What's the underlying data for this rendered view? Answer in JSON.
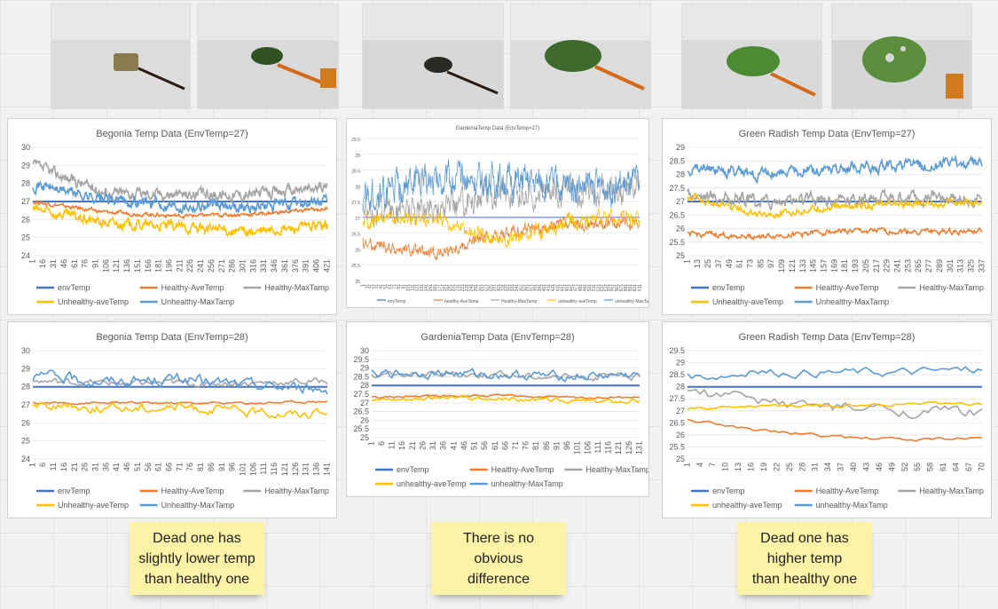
{
  "photos": [
    {
      "name": "photo-begonia-sensor"
    },
    {
      "name": "photo-begonia-leaf"
    },
    {
      "name": "photo-gardenia-sensor"
    },
    {
      "name": "photo-gardenia-leaf"
    },
    {
      "name": "photo-radish-leaf"
    },
    {
      "name": "photo-radish-leaf-damaged"
    }
  ],
  "notes": [
    "Dead one has\nslightly lower temp\nthan healthy one",
    "There is no\nobvious\ndifference",
    "Dead one has\nhigher temp\nthan healthy one"
  ],
  "colors": {
    "envTemp": "#4472c4",
    "healthyAve": "#ed7d31",
    "healthyMax": "#a5a5a5",
    "unhealthyAve": "#ffc000",
    "unhealthyMax": "#5b9bd5"
  },
  "chart_data": [
    {
      "id": "begonia27",
      "type": "line",
      "title": "Begonia Temp Data (EnvTemp=27)",
      "ylim": [
        24,
        30
      ],
      "yticks": [
        24,
        25,
        26,
        27,
        28,
        29,
        30
      ],
      "xticks": [
        "1",
        "16",
        "31",
        "46",
        "61",
        "76",
        "91",
        "106",
        "121",
        "136",
        "151",
        "166",
        "181",
        "196",
        "211",
        "226",
        "241",
        "256",
        "271",
        "286",
        "301",
        "316",
        "331",
        "346",
        "361",
        "376",
        "391",
        "406",
        "421"
      ],
      "n": 432,
      "series": [
        {
          "name": "envTemp",
          "level": [
            27.0,
            27.0,
            27.0,
            27.0,
            27.0
          ],
          "noise": 0
        },
        {
          "name": "Healthy-AveTemp",
          "level": [
            27.0,
            26.4,
            26.2,
            26.3,
            26.6
          ],
          "noise": 0.08
        },
        {
          "name": "Healthy-MaxTamp",
          "level": [
            29.0,
            27.5,
            27.4,
            27.4,
            27.8
          ],
          "noise": 0.25
        },
        {
          "name": "Unhealthy-aveTemp",
          "level": [
            26.6,
            25.8,
            25.6,
            25.3,
            25.7
          ],
          "noise": 0.22
        },
        {
          "name": "Unhealthy-MaxTamp",
          "level": [
            28.0,
            27.1,
            26.8,
            26.7,
            27.0
          ],
          "noise": 0.25
        }
      ],
      "legend_rows": [
        [
          "envTemp",
          "Healthy-AveTemp",
          "Healthy-MaxTamp"
        ],
        [
          "Unhealthy-aveTemp",
          "Unhealthy-MaxTamp"
        ]
      ]
    },
    {
      "id": "gardenia27",
      "type": "line",
      "title": "GardeniaTemp Data (EnvTemp=27)",
      "ylim": [
        25,
        29.5
      ],
      "yticks": [
        25,
        25.5,
        26,
        26.5,
        27,
        27.5,
        28,
        28.5,
        29,
        29.5
      ],
      "xticks": [
        "1",
        "11",
        "21",
        "31",
        "41",
        "51",
        "61",
        "71",
        "81",
        "91",
        "101",
        "111",
        "121",
        "131",
        "141",
        "151",
        "161",
        "171",
        "181",
        "191",
        "201",
        "211",
        "221",
        "231",
        "241",
        "251",
        "261",
        "271",
        "281",
        "291",
        "301",
        "311",
        "321",
        "331",
        "341",
        "351",
        "361",
        "371",
        "381",
        "391",
        "401",
        "411",
        "421",
        "431",
        "441",
        "451",
        "461",
        "471",
        "481",
        "491",
        "501",
        "511",
        "521",
        "531",
        "541",
        "551",
        "561",
        "571",
        "581",
        "591",
        "601",
        "611"
      ],
      "n": 615,
      "series": [
        {
          "name": "envTemp",
          "level": [
            27.0,
            27.0,
            27.0,
            27.0,
            27.0
          ],
          "noise": 0
        },
        {
          "name": "healthy-AveTemp",
          "level": [
            26.2,
            25.8,
            26.5,
            26.8,
            26.8
          ],
          "noise": 0.15
        },
        {
          "name": "Healthy-MaxTamp",
          "level": [
            27.3,
            27.3,
            27.8,
            27.8,
            27.9
          ],
          "noise": 0.35
        },
        {
          "name": "unhealthy-aveTemp",
          "level": [
            26.9,
            27.0,
            26.2,
            26.9,
            27.0
          ],
          "noise": 0.18
        },
        {
          "name": "unhealthy-MaxTamp",
          "level": [
            27.6,
            28.2,
            28.2,
            28.0,
            28.0
          ],
          "noise": 0.4
        }
      ],
      "legend_rows": [
        [
          "envTemp",
          "healthy-AveTemp",
          "Healthy-MaxTamp",
          "unhealthy-aveTemp",
          "unhealthy-MaxTamp"
        ]
      ]
    },
    {
      "id": "radish27",
      "type": "line",
      "title": "Green Radish Temp Data (EnvTemp=27)",
      "ylim": [
        25,
        29
      ],
      "yticks": [
        25,
        25.5,
        26,
        26.5,
        27,
        27.5,
        28,
        28.5,
        29
      ],
      "xticks": [
        "1",
        "13",
        "25",
        "37",
        "49",
        "61",
        "73",
        "85",
        "97",
        "109",
        "121",
        "133",
        "145",
        "157",
        "169",
        "181",
        "193",
        "205",
        "217",
        "229",
        "241",
        "253",
        "265",
        "277",
        "289",
        "301",
        "313",
        "325",
        "337"
      ],
      "n": 345,
      "series": [
        {
          "name": "envTemp",
          "level": [
            27.0,
            27.0,
            27.0,
            27.0,
            27.0
          ],
          "noise": 0
        },
        {
          "name": "Healthy-AveTemp",
          "level": [
            25.8,
            25.7,
            25.9,
            25.9,
            25.9
          ],
          "noise": 0.08
        },
        {
          "name": "Healthy-MaxTamp",
          "level": [
            27.3,
            27.0,
            27.1,
            27.1,
            27.1
          ],
          "noise": 0.2
        },
        {
          "name": "Unhealthy-aveTemp",
          "level": [
            27.2,
            26.5,
            26.8,
            26.9,
            27.0
          ],
          "noise": 0.1
        },
        {
          "name": "Unhealthy-MaxTamp",
          "level": [
            28.3,
            28.0,
            28.2,
            28.3,
            28.4
          ],
          "noise": 0.18
        }
      ],
      "legend_rows": [
        [
          "envTemp",
          "Healthy-AveTemp",
          "Healthy-MaxTamp"
        ],
        [
          "Unhealthy-aveTemp",
          "Unhealthy-MaxTamp"
        ]
      ]
    },
    {
      "id": "begonia28",
      "type": "line",
      "title": "Begonia Temp Data (EnvTemp=28)",
      "ylim": [
        24,
        30
      ],
      "yticks": [
        24,
        25,
        26,
        27,
        28,
        29,
        30
      ],
      "xticks": [
        "1",
        "6",
        "11",
        "16",
        "21",
        "26",
        "31",
        "36",
        "41",
        "46",
        "51",
        "56",
        "61",
        "66",
        "71",
        "76",
        "81",
        "86",
        "91",
        "96",
        "101",
        "106",
        "111",
        "116",
        "121",
        "126",
        "131",
        "136",
        "141"
      ],
      "n": 144,
      "series": [
        {
          "name": "envTemp",
          "level": [
            28.0,
            28.0,
            28.0,
            28.0,
            28.0
          ],
          "noise": 0
        },
        {
          "name": "Healthy-AveTemp",
          "level": [
            27.1,
            27.1,
            27.1,
            27.1,
            27.2
          ],
          "noise": 0.05
        },
        {
          "name": "Healthy-MaxTamp",
          "level": [
            28.3,
            28.2,
            28.2,
            28.2,
            28.3
          ],
          "noise": 0.15
        },
        {
          "name": "Unhealthy-aveTemp",
          "level": [
            27.0,
            26.8,
            26.9,
            26.6,
            26.5
          ],
          "noise": 0.2
        },
        {
          "name": "Unhealthy-MaxTamp",
          "level": [
            28.6,
            28.3,
            28.4,
            28.1,
            27.9
          ],
          "noise": 0.25
        }
      ],
      "legend_rows": [
        [
          "envTemp",
          "Healthy-AveTemp",
          "Healthy-MaxTamp"
        ],
        [
          "Unhealthy-aveTemp",
          "Unhealthy-MaxTamp"
        ]
      ]
    },
    {
      "id": "gardenia28",
      "type": "line",
      "title": "GardeniaTemp Data (EnvTemp=28)",
      "ylim": [
        25,
        30
      ],
      "yticks": [
        25,
        25.5,
        26,
        26.5,
        27,
        27.5,
        28,
        28.5,
        29,
        29.5,
        30
      ],
      "xticks": [
        "1",
        "6",
        "11",
        "16",
        "21",
        "26",
        "31",
        "36",
        "41",
        "46",
        "51",
        "56",
        "61",
        "66",
        "71",
        "76",
        "81",
        "86",
        "91",
        "96",
        "101",
        "106",
        "111",
        "116",
        "121",
        "126",
        "131"
      ],
      "n": 134,
      "series": [
        {
          "name": "envTemp",
          "level": [
            28.0,
            28.0,
            28.0,
            28.0,
            28.0
          ],
          "noise": 0
        },
        {
          "name": "Healthy-AveTemp",
          "level": [
            27.3,
            27.4,
            27.4,
            27.3,
            27.3
          ],
          "noise": 0.05
        },
        {
          "name": "Healthy-MaxTamp",
          "level": [
            28.6,
            28.7,
            28.6,
            28.5,
            28.5
          ],
          "noise": 0.15
        },
        {
          "name": "unhealthy-aveTemp",
          "level": [
            27.2,
            27.3,
            27.2,
            27.1,
            27.1
          ],
          "noise": 0.1
        },
        {
          "name": "unhealthy-MaxTamp",
          "level": [
            28.7,
            28.7,
            28.6,
            28.5,
            28.6
          ],
          "noise": 0.2
        }
      ],
      "legend_rows": [
        [
          "envTemp",
          "Healthy-AveTemp",
          "Healthy-MaxTamp"
        ],
        [
          "unhealthy-aveTemp",
          "unhealthy-MaxTamp"
        ]
      ]
    },
    {
      "id": "radish28",
      "type": "line",
      "title": "Green Radish Temp Data (EnvTemp=28)",
      "ylim": [
        25,
        29.5
      ],
      "yticks": [
        25,
        25.5,
        26,
        26.5,
        27,
        27.5,
        28,
        28.5,
        29,
        29.5
      ],
      "xticks": [
        "1",
        "4",
        "7",
        "10",
        "13",
        "16",
        "19",
        "22",
        "25",
        "28",
        "31",
        "34",
        "37",
        "40",
        "43",
        "46",
        "49",
        "52",
        "55",
        "58",
        "61",
        "64",
        "67",
        "70"
      ],
      "n": 72,
      "series": [
        {
          "name": "envTemp",
          "level": [
            28.0,
            28.0,
            28.0,
            28.0,
            28.0
          ],
          "noise": 0
        },
        {
          "name": "Healthy-AveTemp",
          "level": [
            26.6,
            26.2,
            25.9,
            25.8,
            25.85
          ],
          "noise": 0.06
        },
        {
          "name": "Healthy-MaxTamp",
          "level": [
            27.8,
            27.4,
            27.1,
            27.0,
            26.9
          ],
          "noise": 0.2
        },
        {
          "name": "unhealthy-aveTemp",
          "level": [
            27.1,
            27.2,
            27.2,
            27.3,
            27.3
          ],
          "noise": 0.06
        },
        {
          "name": "unhealthy-MaxTamp",
          "level": [
            28.4,
            28.6,
            28.6,
            28.6,
            28.7
          ],
          "noise": 0.15
        }
      ],
      "legend_rows": [
        [
          "envTemp",
          "Healthy-AveTemp",
          "Healthy-MaxTamp"
        ],
        [
          "unhealthy-aveTemp",
          "unhealthy-MaxTamp"
        ]
      ]
    }
  ]
}
